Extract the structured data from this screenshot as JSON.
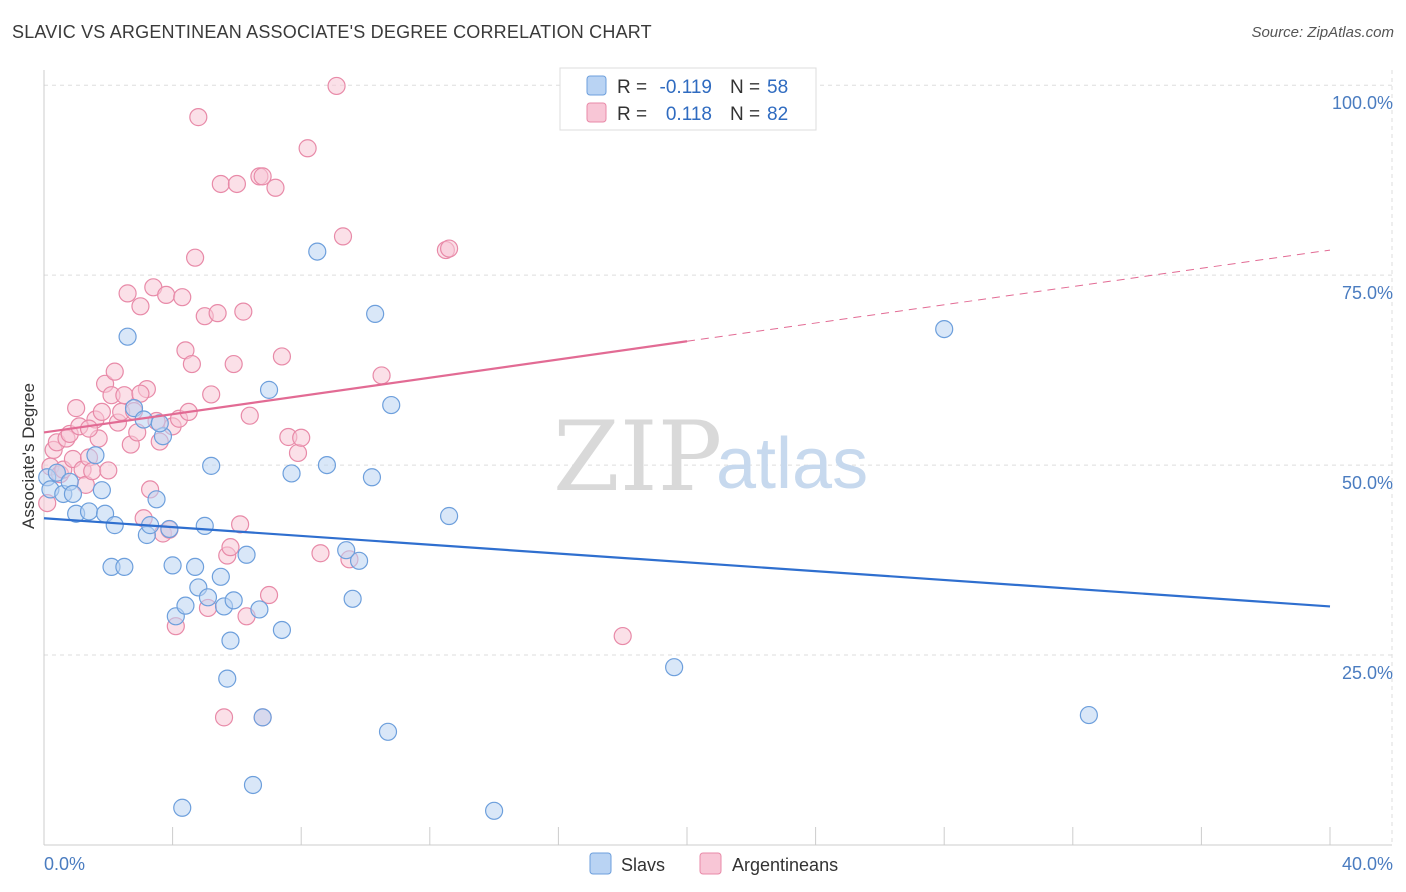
{
  "title": "SLAVIC VS ARGENTINEAN ASSOCIATE'S DEGREE CORRELATION CHART",
  "source": "Source: ZipAtlas.com",
  "watermark": {
    "zip": "ZIP",
    "atlas": "atlas"
  },
  "colors": {
    "slavs_fill": "#b9d3f3",
    "slavs_stroke": "#6d9fdc",
    "slavs_line": "#2f6fcf",
    "arg_fill": "#f8c6d6",
    "arg_stroke": "#e88aa8",
    "arg_line": "#e26b94",
    "grid": "#dddddd",
    "axis_label": "#4a7cc0"
  },
  "legend": {
    "row1": {
      "r_label": "R =",
      "r_value": "-0.119",
      "n_label": "N =",
      "n_value": "58"
    },
    "row2": {
      "r_label": "R =",
      "r_value": "0.118",
      "n_label": "N =",
      "n_value": "82"
    }
  },
  "bottom_legend": {
    "slavs": "Slavs",
    "argentineans": "Argentineans"
  },
  "chart_data": {
    "type": "scatter",
    "title": "SLAVIC VS ARGENTINEAN ASSOCIATE'S DEGREE CORRELATION CHART",
    "xlabel": "",
    "ylabel": "Associate's Degree",
    "xlim": [
      0,
      40
    ],
    "ylim": [
      0,
      102
    ],
    "x_tick_labels": [
      "0.0%",
      "40.0%"
    ],
    "y_ticks": [
      25,
      50,
      75,
      100
    ],
    "y_tick_labels": [
      "25.0%",
      "50.0%",
      "75.0%",
      "100.0%"
    ],
    "grid": true,
    "legend_position": "top-center",
    "series": [
      {
        "name": "Slavs",
        "r": -0.119,
        "n": 58,
        "trend": {
          "x": [
            0,
            40
          ],
          "y": [
            43.0,
            31.4
          ]
        },
        "points": [
          [
            0.1,
            48.4
          ],
          [
            0.2,
            46.8
          ],
          [
            0.4,
            49.0
          ],
          [
            0.6,
            46.2
          ],
          [
            0.8,
            47.8
          ],
          [
            0.9,
            46.2
          ],
          [
            1.0,
            43.6
          ],
          [
            1.4,
            43.9
          ],
          [
            1.6,
            51.3
          ],
          [
            1.8,
            46.7
          ],
          [
            1.9,
            43.6
          ],
          [
            2.1,
            36.6
          ],
          [
            2.2,
            42.1
          ],
          [
            2.5,
            36.6
          ],
          [
            2.6,
            66.9
          ],
          [
            2.8,
            57.5
          ],
          [
            3.1,
            56.0
          ],
          [
            3.2,
            40.8
          ],
          [
            3.3,
            42.1
          ],
          [
            3.5,
            45.5
          ],
          [
            3.7,
            53.8
          ],
          [
            3.9,
            41.6
          ],
          [
            4.0,
            36.8
          ],
          [
            4.1,
            30.1
          ],
          [
            4.4,
            31.5
          ],
          [
            4.7,
            36.6
          ],
          [
            4.8,
            33.9
          ],
          [
            5.0,
            42.0
          ],
          [
            5.1,
            32.6
          ],
          [
            5.2,
            49.9
          ],
          [
            5.5,
            35.3
          ],
          [
            5.6,
            31.4
          ],
          [
            5.7,
            21.9
          ],
          [
            5.8,
            26.9
          ],
          [
            5.9,
            32.2
          ],
          [
            6.3,
            38.2
          ],
          [
            6.5,
            7.9
          ],
          [
            6.7,
            31.0
          ],
          [
            6.8,
            16.8
          ],
          [
            7.0,
            59.9
          ],
          [
            7.4,
            28.3
          ],
          [
            7.7,
            48.9
          ],
          [
            8.5,
            78.1
          ],
          [
            8.8,
            50.0
          ],
          [
            9.4,
            38.8
          ],
          [
            9.6,
            32.4
          ],
          [
            9.8,
            37.4
          ],
          [
            10.2,
            48.4
          ],
          [
            10.3,
            69.9
          ],
          [
            10.7,
            14.9
          ],
          [
            10.8,
            57.9
          ],
          [
            12.6,
            43.3
          ],
          [
            14.0,
            4.5
          ],
          [
            19.6,
            23.4
          ],
          [
            28.0,
            67.9
          ],
          [
            32.5,
            17.1
          ],
          [
            4.3,
            4.9
          ],
          [
            3.6,
            55.5
          ]
        ]
      },
      {
        "name": "Argentineans",
        "r": 0.118,
        "n": 82,
        "trend": {
          "x": [
            0,
            20
          ],
          "y": [
            54.3,
            66.3
          ]
        },
        "trend_dashed": {
          "x": [
            20,
            40
          ],
          "y": [
            66.3,
            78.3
          ]
        },
        "points": [
          [
            0.1,
            45.0
          ],
          [
            0.2,
            49.8
          ],
          [
            0.3,
            52.0
          ],
          [
            0.4,
            53.0
          ],
          [
            0.5,
            48.8
          ],
          [
            0.6,
            49.4
          ],
          [
            0.7,
            53.5
          ],
          [
            0.8,
            54.1
          ],
          [
            0.9,
            50.8
          ],
          [
            1.0,
            57.5
          ],
          [
            1.1,
            55.1
          ],
          [
            1.2,
            49.4
          ],
          [
            1.3,
            47.4
          ],
          [
            1.4,
            51.0
          ],
          [
            1.5,
            49.2
          ],
          [
            1.6,
            56.0
          ],
          [
            1.7,
            53.5
          ],
          [
            1.8,
            57.0
          ],
          [
            1.9,
            60.7
          ],
          [
            2.0,
            49.3
          ],
          [
            2.1,
            59.2
          ],
          [
            2.2,
            62.3
          ],
          [
            2.3,
            55.6
          ],
          [
            2.4,
            57.0
          ],
          [
            2.5,
            59.2
          ],
          [
            2.6,
            72.6
          ],
          [
            2.7,
            52.7
          ],
          [
            2.8,
            57.1
          ],
          [
            2.9,
            54.3
          ],
          [
            3.0,
            70.9
          ],
          [
            3.1,
            43.0
          ],
          [
            3.2,
            60.0
          ],
          [
            3.3,
            46.8
          ],
          [
            3.4,
            73.4
          ],
          [
            3.5,
            55.8
          ],
          [
            3.6,
            53.1
          ],
          [
            3.7,
            41.0
          ],
          [
            3.8,
            72.4
          ],
          [
            3.9,
            41.5
          ],
          [
            4.0,
            55.1
          ],
          [
            4.1,
            28.8
          ],
          [
            4.2,
            56.1
          ],
          [
            4.3,
            72.1
          ],
          [
            4.4,
            65.1
          ],
          [
            4.5,
            57.0
          ],
          [
            4.6,
            63.3
          ],
          [
            4.7,
            77.3
          ],
          [
            4.8,
            95.8
          ],
          [
            5.0,
            69.6
          ],
          [
            5.1,
            31.2
          ],
          [
            5.2,
            59.3
          ],
          [
            5.4,
            70.0
          ],
          [
            5.5,
            87.0
          ],
          [
            5.6,
            16.8
          ],
          [
            5.7,
            38.1
          ],
          [
            5.8,
            39.2
          ],
          [
            5.9,
            63.3
          ],
          [
            6.0,
            87.0
          ],
          [
            6.1,
            42.2
          ],
          [
            6.2,
            70.2
          ],
          [
            6.3,
            30.1
          ],
          [
            6.4,
            56.5
          ],
          [
            6.7,
            88.0
          ],
          [
            6.8,
            16.8
          ],
          [
            7.0,
            32.9
          ],
          [
            7.2,
            86.5
          ],
          [
            7.4,
            64.3
          ],
          [
            7.6,
            53.7
          ],
          [
            7.9,
            51.6
          ],
          [
            8.0,
            53.6
          ],
          [
            8.2,
            91.7
          ],
          [
            8.6,
            38.4
          ],
          [
            9.1,
            99.9
          ],
          [
            9.3,
            80.1
          ],
          [
            9.5,
            37.6
          ],
          [
            10.5,
            61.8
          ],
          [
            12.5,
            78.3
          ],
          [
            12.6,
            78.5
          ],
          [
            18.0,
            27.5
          ],
          [
            1.4,
            54.8
          ],
          [
            3.0,
            59.4
          ],
          [
            6.8,
            88.0
          ]
        ]
      }
    ]
  }
}
